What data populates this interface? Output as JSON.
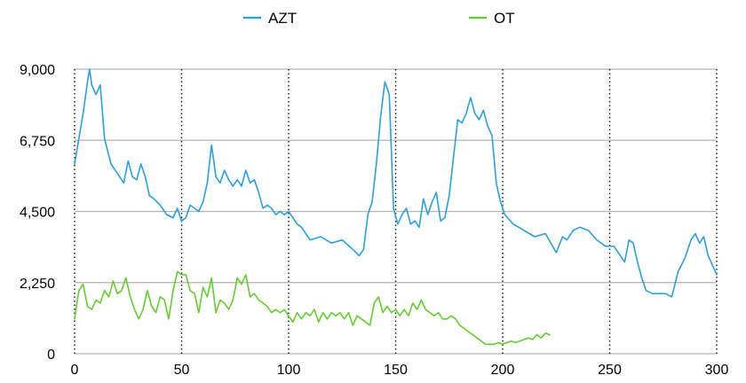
{
  "chart_data": {
    "type": "line",
    "xlim": [
      0,
      300
    ],
    "ylim": [
      0,
      9000
    ],
    "x_ticks": [
      "0",
      "50",
      "100",
      "150",
      "200",
      "250",
      "300"
    ],
    "y_ticks": [
      "0",
      "2,250",
      "4,500",
      "6,750",
      "9,000"
    ],
    "grid": {
      "horizontal": "solid",
      "vertical": "dotted"
    },
    "legend_position": "top-center",
    "series": [
      {
        "name": "AZT",
        "color": "#2c9fdd",
        "x": [
          0,
          2,
          4,
          6,
          7,
          8,
          10,
          12,
          14,
          17,
          20,
          23,
          25,
          27,
          29,
          31,
          33,
          35,
          37,
          40,
          43,
          46,
          48,
          50,
          52,
          54,
          56,
          58,
          60,
          62,
          64,
          66,
          68,
          70,
          72,
          74,
          76,
          78,
          80,
          82,
          84,
          86,
          88,
          90,
          92,
          94,
          96,
          98,
          100,
          102,
          104,
          106,
          108,
          110,
          115,
          120,
          125,
          130,
          133,
          135,
          137,
          139,
          141,
          143,
          145,
          147,
          149,
          151,
          153,
          155,
          157,
          159,
          161,
          163,
          165,
          167,
          169,
          171,
          173,
          175,
          177,
          179,
          181,
          183,
          185,
          187,
          189,
          191,
          193,
          195,
          197,
          199,
          201,
          205,
          210,
          215,
          220,
          225,
          228,
          230,
          233,
          236,
          240,
          244,
          248,
          252,
          255,
          257,
          259,
          261,
          263,
          265,
          267,
          270,
          273,
          276,
          279,
          282,
          285,
          288,
          290,
          292,
          294,
          296,
          298,
          300
        ],
        "y": [
          6000,
          6800,
          7600,
          8600,
          9000,
          8500,
          8200,
          8500,
          6800,
          6000,
          5700,
          5400,
          6100,
          5600,
          5500,
          6000,
          5600,
          5000,
          4900,
          4700,
          4400,
          4300,
          4600,
          4200,
          4300,
          4700,
          4600,
          4500,
          4800,
          5400,
          6600,
          5600,
          5400,
          5800,
          5500,
          5300,
          5500,
          5300,
          5800,
          5400,
          5500,
          5100,
          4600,
          4700,
          4600,
          4400,
          4500,
          4400,
          4500,
          4300,
          4100,
          4000,
          3800,
          3600,
          3700,
          3500,
          3600,
          3300,
          3100,
          3300,
          4400,
          4800,
          6000,
          7500,
          8600,
          8200,
          4600,
          4100,
          4400,
          4600,
          4100,
          4200,
          4000,
          4900,
          4400,
          4800,
          5100,
          4200,
          4300,
          5000,
          6200,
          7400,
          7300,
          7600,
          8100,
          7600,
          7400,
          7700,
          7200,
          6900,
          5400,
          4800,
          4400,
          4100,
          3900,
          3700,
          3800,
          3200,
          3700,
          3600,
          3900,
          4000,
          3900,
          3600,
          3400,
          3400,
          3100,
          2900,
          3600,
          3500,
          2900,
          2400,
          2000,
          1900,
          1900,
          1900,
          1800,
          2600,
          3000,
          3600,
          3800,
          3500,
          3700,
          3100,
          2800,
          2500
        ]
      },
      {
        "name": "OT",
        "color": "#66cc33",
        "x": [
          0,
          2,
          4,
          6,
          8,
          10,
          12,
          14,
          16,
          18,
          20,
          22,
          24,
          26,
          28,
          30,
          32,
          34,
          36,
          38,
          40,
          42,
          44,
          46,
          48,
          50,
          52,
          54,
          56,
          58,
          60,
          62,
          64,
          66,
          68,
          70,
          72,
          74,
          76,
          78,
          80,
          82,
          84,
          86,
          88,
          90,
          92,
          94,
          96,
          98,
          100,
          102,
          104,
          106,
          108,
          110,
          112,
          114,
          116,
          118,
          120,
          122,
          124,
          126,
          128,
          130,
          132,
          134,
          136,
          138,
          140,
          142,
          144,
          146,
          148,
          150,
          152,
          154,
          156,
          158,
          160,
          162,
          164,
          166,
          168,
          170,
          172,
          174,
          176,
          178,
          180,
          182,
          184,
          186,
          188,
          190,
          192,
          194,
          196,
          198,
          200,
          202,
          204,
          206,
          208,
          210,
          212,
          214,
          216,
          218,
          220,
          222
        ],
        "y": [
          1100,
          2000,
          2200,
          1500,
          1400,
          1700,
          1600,
          2000,
          1800,
          2300,
          1900,
          2000,
          2400,
          1800,
          1400,
          1100,
          1400,
          2000,
          1500,
          1300,
          1800,
          1700,
          1100,
          2000,
          2600,
          2500,
          2500,
          2000,
          1900,
          1300,
          2100,
          1800,
          2400,
          1300,
          1700,
          1600,
          1400,
          1700,
          2400,
          2200,
          2500,
          1800,
          1900,
          1700,
          1600,
          1500,
          1300,
          1400,
          1300,
          1400,
          1200,
          1000,
          1300,
          1100,
          1300,
          1200,
          1400,
          1000,
          1300,
          1100,
          1300,
          1200,
          1300,
          1100,
          1300,
          900,
          1200,
          1100,
          1000,
          900,
          1600,
          1800,
          1300,
          1500,
          1300,
          1400,
          1200,
          1400,
          1200,
          1600,
          1400,
          1700,
          1400,
          1300,
          1200,
          1300,
          1100,
          1100,
          1200,
          1100,
          900,
          800,
          700,
          600,
          500,
          400,
          300,
          300,
          300,
          350,
          300,
          350,
          400,
          350,
          400,
          450,
          500,
          450,
          600,
          500,
          650,
          600
        ]
      }
    ]
  }
}
